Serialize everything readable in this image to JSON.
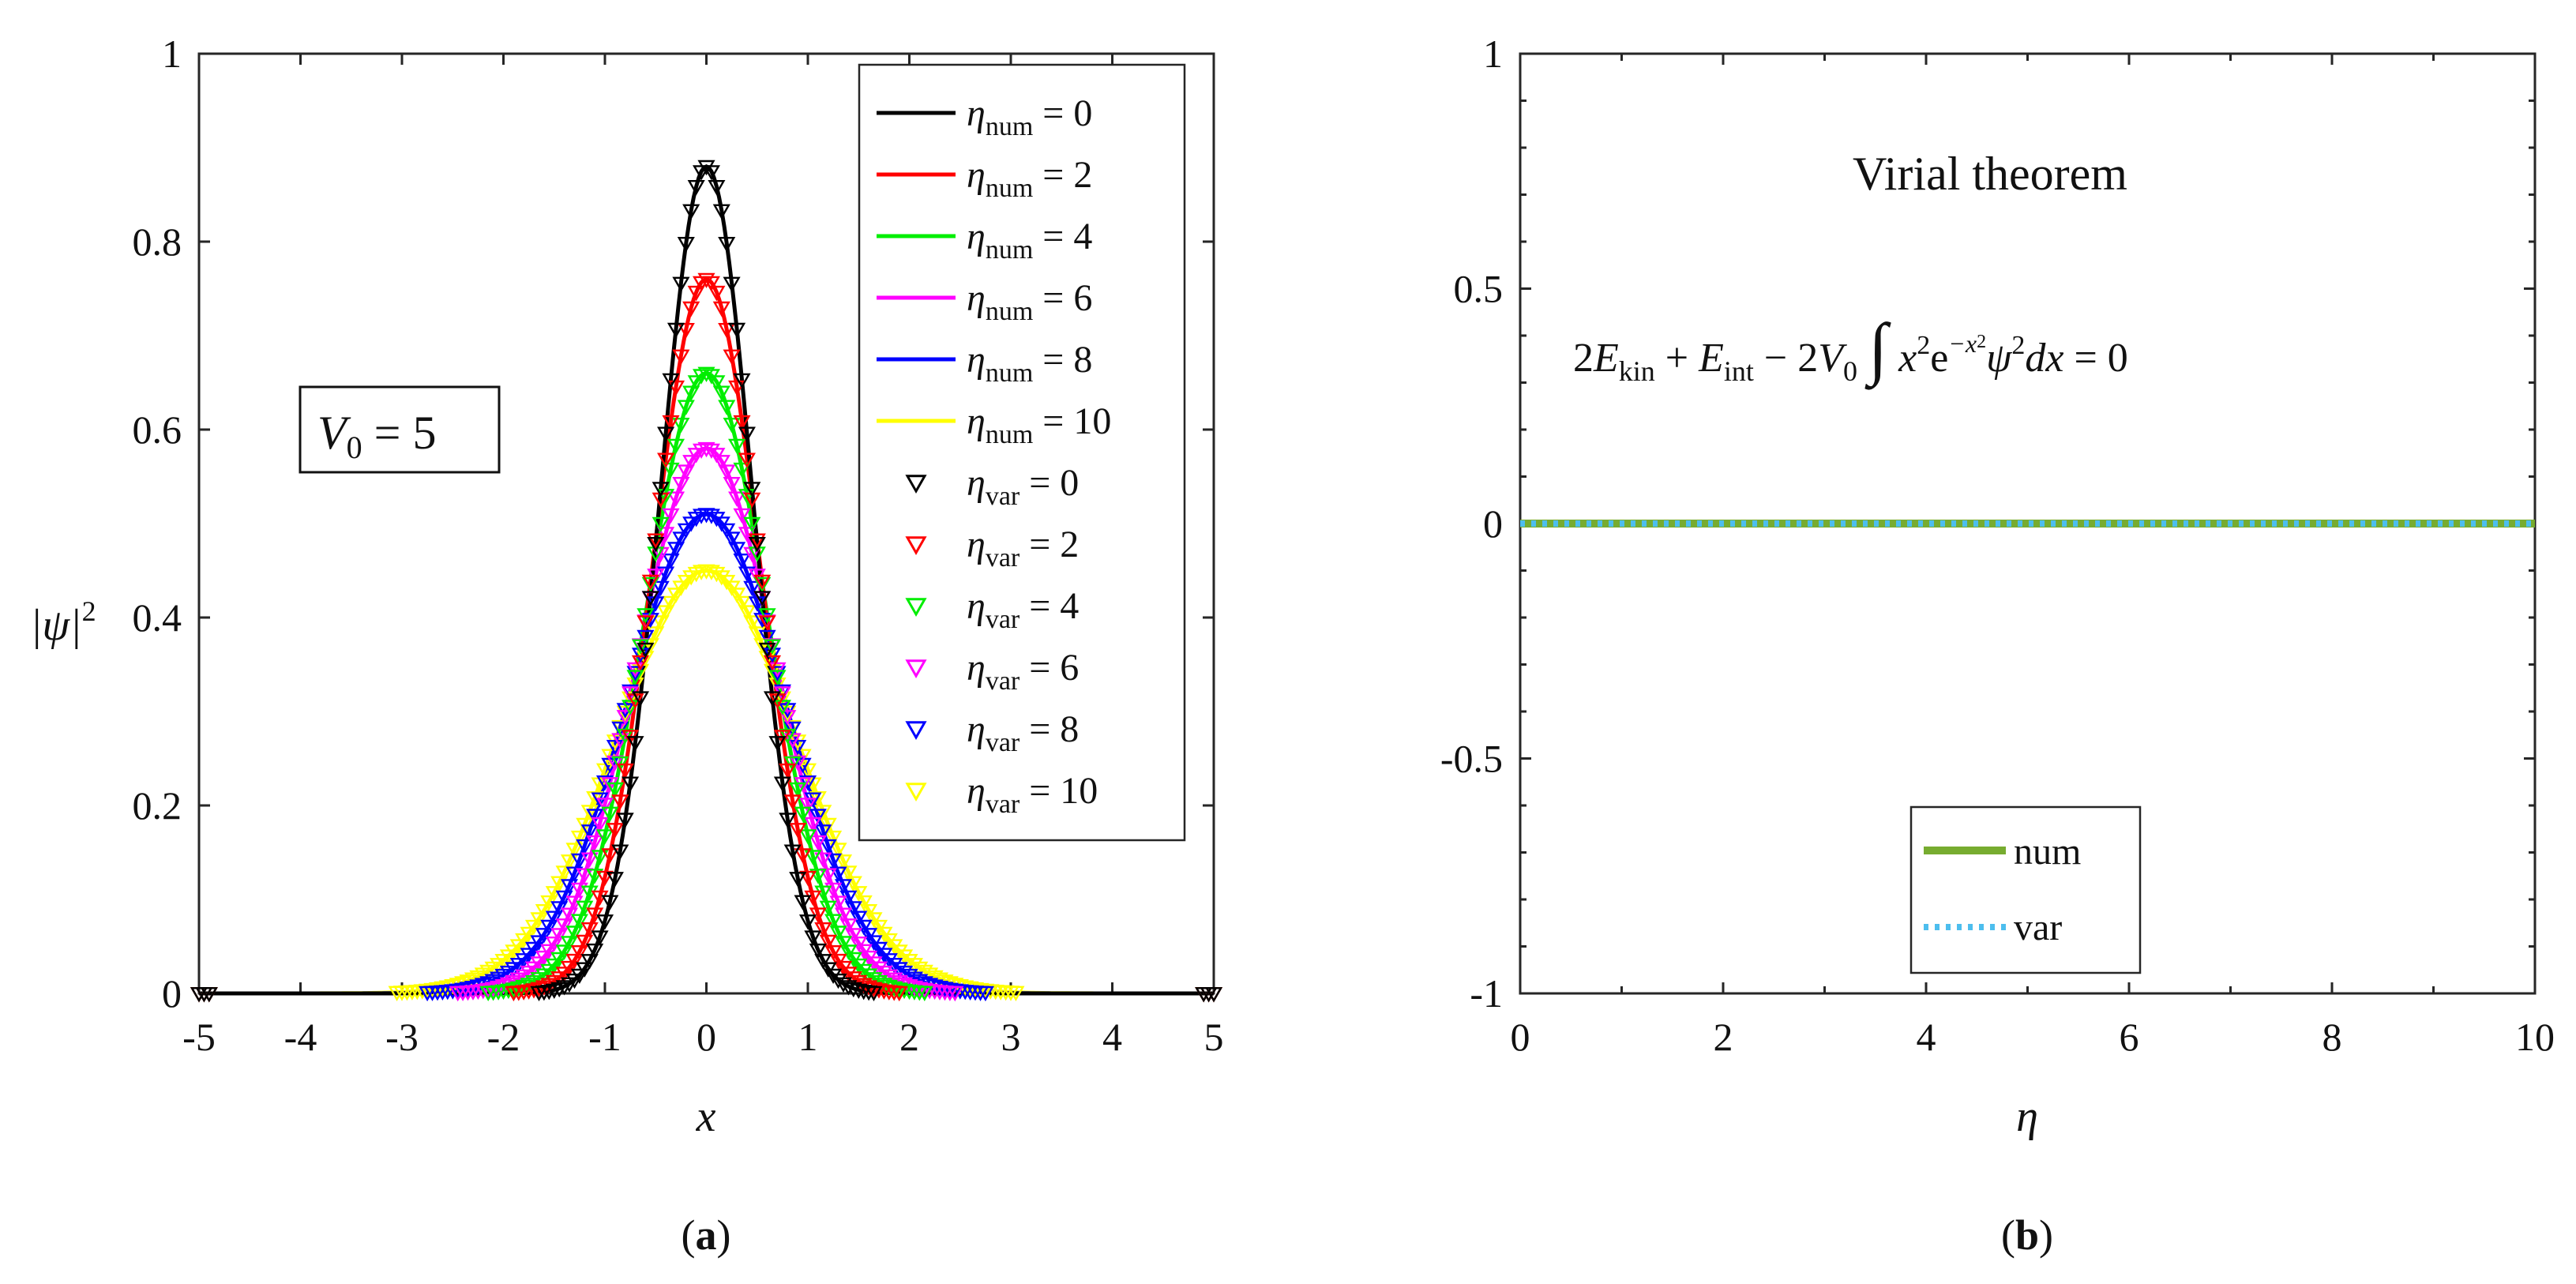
{
  "chart_data": [
    {
      "type": "line",
      "panel_label": "a",
      "xlabel": "x",
      "ylabel": "|ψ|",
      "ylabel_sup": "2",
      "xlim": [
        -5,
        5
      ],
      "ylim": [
        0,
        1
      ],
      "xticks": [
        "-5",
        "-4",
        "-3",
        "-2",
        "-1",
        "0",
        "1",
        "2",
        "3",
        "4",
        "5"
      ],
      "yticks": [
        "0",
        "0.2",
        "0.4",
        "0.6",
        "0.8",
        "1"
      ],
      "annotation": "V",
      "annotation_sub": "0",
      "annotation_rest": " = 5",
      "legend_position": "top-right",
      "series": [
        {
          "name_var": "η",
          "name_sub": "num",
          "value_text": " = 0",
          "eta": 0,
          "kind": "line",
          "color": "#000000",
          "peak": 0.88
        },
        {
          "name_var": "η",
          "name_sub": "num",
          "value_text": " = 2",
          "eta": 2,
          "kind": "line",
          "color": "#ff0000",
          "peak": 0.76
        },
        {
          "name_var": "η",
          "name_sub": "num",
          "value_text": " = 4",
          "eta": 4,
          "kind": "line",
          "color": "#00ee00",
          "peak": 0.66
        },
        {
          "name_var": "η",
          "name_sub": "num",
          "value_text": " = 6",
          "eta": 6,
          "kind": "line",
          "color": "#ff00ff",
          "peak": 0.58
        },
        {
          "name_var": "η",
          "name_sub": "num",
          "value_text": " = 8",
          "eta": 8,
          "kind": "line",
          "color": "#0000ff",
          "peak": 0.51
        },
        {
          "name_var": "η",
          "name_sub": "num",
          "value_text": " = 10",
          "eta": 10,
          "kind": "line",
          "color": "#ffff00",
          "peak": 0.45
        },
        {
          "name_var": "η",
          "name_sub": "var",
          "value_text": " = 0",
          "eta": 0,
          "kind": "marker",
          "color": "#000000",
          "peak": 0.88
        },
        {
          "name_var": "η",
          "name_sub": "var",
          "value_text": " = 2",
          "eta": 2,
          "kind": "marker",
          "color": "#ff0000",
          "peak": 0.76
        },
        {
          "name_var": "η",
          "name_sub": "var",
          "value_text": " = 4",
          "eta": 4,
          "kind": "marker",
          "color": "#00ee00",
          "peak": 0.66
        },
        {
          "name_var": "η",
          "name_sub": "var",
          "value_text": " = 6",
          "eta": 6,
          "kind": "marker",
          "color": "#ff00ff",
          "peak": 0.58
        },
        {
          "name_var": "η",
          "name_sub": "var",
          "value_text": " = 8",
          "eta": 8,
          "kind": "marker",
          "color": "#0000ff",
          "peak": 0.51
        },
        {
          "name_var": "η",
          "name_sub": "var",
          "value_text": " = 10",
          "eta": 10,
          "kind": "marker",
          "color": "#ffff00",
          "peak": 0.45
        }
      ]
    },
    {
      "type": "line",
      "panel_label": "b",
      "xlabel": "η",
      "ylabel": "",
      "xlim": [
        0,
        10
      ],
      "ylim": [
        -1,
        1
      ],
      "xticks": [
        "0",
        "2",
        "4",
        "6",
        "8",
        "10"
      ],
      "yticks": [
        "-1",
        "-0.5",
        "0",
        "0.5",
        "1"
      ],
      "title_annotation": "Virial theorem",
      "formula": {
        "p1": "2",
        "E": "E",
        "kin": "kin",
        "plus": " + ",
        "int": "int",
        "minus": " − 2",
        "V": "V",
        "zero": "0",
        "integral": "∫",
        "x": "x",
        "two": "2",
        "e": "e",
        "negx": "−x",
        "psi": "ψ",
        "dx": "dx",
        "eq": " = 0"
      },
      "legend_position": "bottom-center",
      "series": [
        {
          "name": "num",
          "color": "#77ac30",
          "style": "solid",
          "x": [
            0,
            10
          ],
          "y": [
            0,
            0
          ]
        },
        {
          "name": "var",
          "color": "#4dbeee",
          "style": "dotted",
          "x": [
            0,
            10
          ],
          "y": [
            0,
            0
          ]
        }
      ]
    }
  ]
}
